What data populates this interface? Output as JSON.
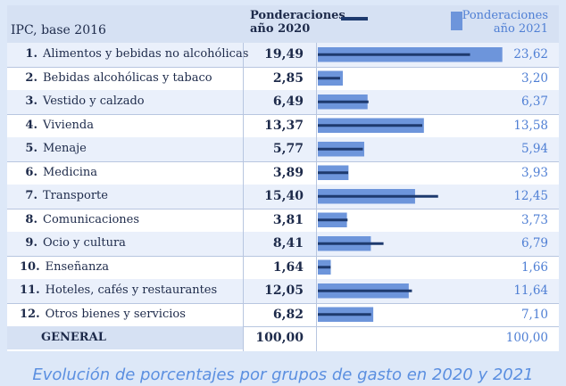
{
  "chart_data": {
    "type": "bar",
    "title": "IPC, base 2016",
    "caption": "Evolución de porcentajes por grupos de gasto en 2020 y 2021",
    "series_labels": {
      "y2020": "Ponderaciones año 2020",
      "y2021": "Ponderaciones año 2021"
    },
    "series_2020_line1": "Ponderaciones",
    "series_2020_line2": "año 2020",
    "series_2021_line1": "Ponderaciones",
    "series_2021_line2": "año 2021",
    "xlim": [
      0,
      24
    ],
    "rows": [
      {
        "num": "1.",
        "label": "Alimentos y bebidas no alcohólicas",
        "v2020": 19.49,
        "v2021": 23.62,
        "t2020": "19,49",
        "t2021": "23,62"
      },
      {
        "num": "2.",
        "label": "Bebidas alcohólicas y tabaco",
        "v2020": 2.85,
        "v2021": 3.2,
        "t2020": "2,85",
        "t2021": "3,20"
      },
      {
        "num": "3.",
        "label": "Vestido y calzado",
        "v2020": 6.49,
        "v2021": 6.37,
        "t2020": "6,49",
        "t2021": "6,37"
      },
      {
        "num": "4.",
        "label": "Vivienda",
        "v2020": 13.37,
        "v2021": 13.58,
        "t2020": "13,37",
        "t2021": "13,58"
      },
      {
        "num": "5.",
        "label": "Menaje",
        "v2020": 5.77,
        "v2021": 5.94,
        "t2020": "5,77",
        "t2021": "5,94"
      },
      {
        "num": "6.",
        "label": "Medicina",
        "v2020": 3.89,
        "v2021": 3.93,
        "t2020": "3,89",
        "t2021": "3,93"
      },
      {
        "num": "7.",
        "label": "Transporte",
        "v2020": 15.4,
        "v2021": 12.45,
        "t2020": "15,40",
        "t2021": "12,45"
      },
      {
        "num": "8.",
        "label": "Comunicaciones",
        "v2020": 3.81,
        "v2021": 3.73,
        "t2020": "3,81",
        "t2021": "3,73"
      },
      {
        "num": "9.",
        "label": "Ocio y cultura",
        "v2020": 8.41,
        "v2021": 6.79,
        "t2020": "8,41",
        "t2021": "6,79"
      },
      {
        "num": "10.",
        "label": "Enseñanza",
        "v2020": 1.64,
        "v2021": 1.66,
        "t2020": "1,64",
        "t2021": "1,66"
      },
      {
        "num": "11.",
        "label": "Hoteles, cafés y restaurantes",
        "v2020": 12.05,
        "v2021": 11.64,
        "t2020": "12,05",
        "t2021": "11,64"
      },
      {
        "num": "12.",
        "label": "Otros bienes y servicios",
        "v2020": 6.82,
        "v2021": 7.1,
        "t2020": "6,82",
        "t2021": "7,10"
      }
    ],
    "total": {
      "label": "GENERAL",
      "t2020": "100,00",
      "t2021": "100,00"
    },
    "colors": {
      "bar_2021": "#6d95db",
      "line_2020": "#1e3a6e",
      "text_2021": "#4f7fd4"
    }
  }
}
